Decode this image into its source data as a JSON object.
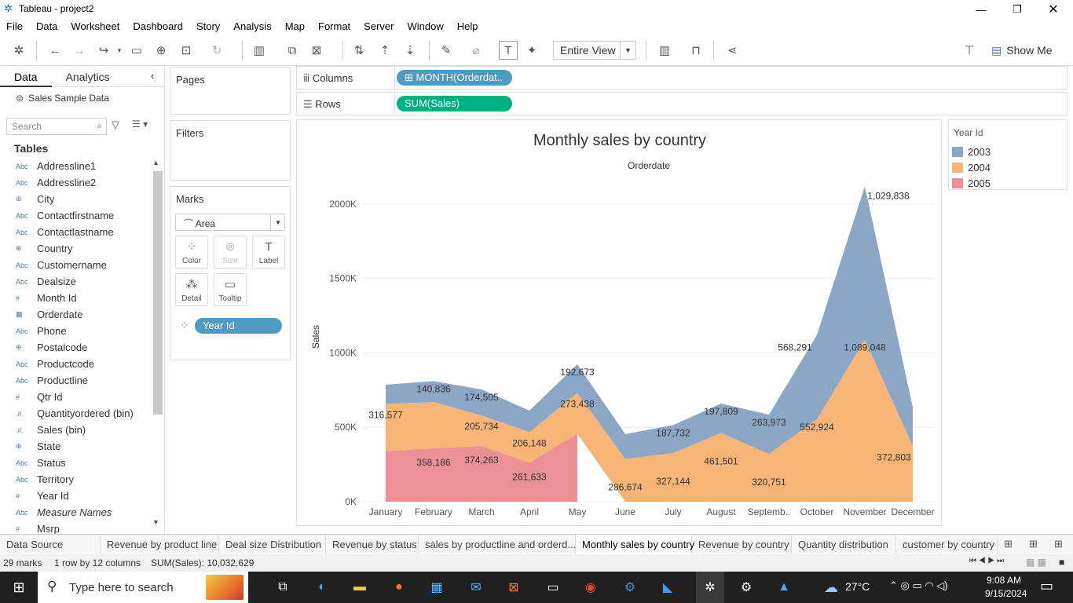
{
  "window": {
    "title": "Tableau - project2"
  },
  "menu": [
    "File",
    "Data",
    "Worksheet",
    "Dashboard",
    "Story",
    "Analysis",
    "Map",
    "Format",
    "Server",
    "Window",
    "Help"
  ],
  "toolbar": {
    "fit": "Entire View",
    "show_me": "Show Me"
  },
  "left_pane": {
    "tabs": [
      "Data",
      "Analytics"
    ],
    "datasource": "Sales Sample Data",
    "search_placeholder": "Search",
    "tables_heading": "Tables",
    "fields": [
      {
        "type": "Abc",
        "name": "Addressline1",
        "icon": "abc-icon"
      },
      {
        "type": "Abc",
        "name": "Addressline2",
        "icon": "abc-icon"
      },
      {
        "type": "⊕",
        "name": "City",
        "icon": "globe-icon"
      },
      {
        "type": "Abc",
        "name": "Contactfirstname",
        "icon": "abc-icon"
      },
      {
        "type": "Abc",
        "name": "Contactlastname",
        "icon": "abc-icon"
      },
      {
        "type": "⊕",
        "name": "Country",
        "icon": "globe-icon"
      },
      {
        "type": "Abc",
        "name": "Customername",
        "icon": "abc-icon"
      },
      {
        "type": "Abc",
        "name": "Dealsize",
        "icon": "abc-icon"
      },
      {
        "type": "#",
        "name": "Month Id",
        "icon": "number-icon"
      },
      {
        "type": "▦",
        "name": "Orderdate",
        "icon": "calendar-icon"
      },
      {
        "type": "Abc",
        "name": "Phone",
        "icon": "abc-icon"
      },
      {
        "type": "⊕",
        "name": "Postalcode",
        "icon": "globe-icon"
      },
      {
        "type": "Abc",
        "name": "Productcode",
        "icon": "abc-icon"
      },
      {
        "type": "Abc",
        "name": "Productline",
        "icon": "abc-icon"
      },
      {
        "type": "#",
        "name": "Qtr Id",
        "icon": "number-icon"
      },
      {
        "type": ".ıl.",
        "name": "Quantityordered (bin)",
        "icon": "bin-icon"
      },
      {
        "type": ".ıl.",
        "name": "Sales (bin)",
        "icon": "bin-icon"
      },
      {
        "type": "⊕",
        "name": "State",
        "icon": "globe-icon"
      },
      {
        "type": "Abc",
        "name": "Status",
        "icon": "abc-icon"
      },
      {
        "type": "Abc",
        "name": "Territory",
        "icon": "abc-icon"
      },
      {
        "type": "#",
        "name": "Year Id",
        "icon": "number-icon"
      },
      {
        "type": "Abc",
        "name": "Measure Names",
        "icon": "abc-icon"
      },
      {
        "type": "#",
        "name": "Msrp",
        "icon": "number-icon"
      }
    ]
  },
  "cards": {
    "pages": "Pages",
    "filters": "Filters",
    "marks": "Marks",
    "mark_type": "Area",
    "buttons": [
      "Color",
      "Size",
      "Label",
      "Detail",
      "Tooltip"
    ],
    "color_pill": "Year Id"
  },
  "shelves": {
    "columns_label": "Columns",
    "columns_pill": "⊞ MONTH(Orderdat..",
    "rows_label": "Rows",
    "rows_pill": "SUM(Sales)"
  },
  "colors": {
    "2003": "#8ca6c6",
    "2004": "#f6b477",
    "2005": "#ea9195",
    "pill_blue": "#4e9ac0",
    "pill_green": "#00b180"
  },
  "chart_data": {
    "type": "area",
    "title": "Monthly sales by country",
    "xlabel": "Orderdate",
    "ylabel": "Sales",
    "ylim": [
      0,
      2100000
    ],
    "yticks": [
      "0K",
      "500K",
      "1000K",
      "1500K",
      "2000K"
    ],
    "categories": [
      "January",
      "February",
      "March",
      "April",
      "May",
      "June",
      "July",
      "August",
      "Septemb..",
      "October",
      "November",
      "December"
    ],
    "stacked": true,
    "series": [
      {
        "name": "2005",
        "values": [
          339543,
          358186,
          374263,
          261633,
          457000,
          null,
          null,
          null,
          null,
          null,
          null,
          null
        ],
        "labels": [
          "",
          "358,186",
          "374,263",
          "261,633",
          "",
          "",
          "",
          "",
          "",
          "",
          "",
          ""
        ]
      },
      {
        "name": "2004",
        "values": [
          316577,
          311419,
          205734,
          206148,
          273438,
          286674,
          327144,
          461501,
          320751,
          552924,
          1089048,
          372803
        ],
        "labels": [
          "316,577",
          "",
          "205,734",
          "206,148",
          "273,438",
          "286,674",
          "327,144",
          "461,501",
          "320,751",
          "552,924",
          "1,089,048",
          "372,803"
        ]
      },
      {
        "name": "2003",
        "values": [
          129754,
          140836,
          174505,
          144384,
          192673,
          168082,
          187732,
          197809,
          263973,
          568291,
          1029838,
          261879
        ],
        "labels": [
          "",
          "140,836",
          "174,505",
          "",
          "192,673",
          "",
          "187,732",
          "197,809",
          "263,973",
          "568,291",
          "1,029,838",
          ""
        ]
      }
    ],
    "legend": {
      "title": "Year Id",
      "entries": [
        "2003",
        "2004",
        "2005"
      ],
      "position": "right"
    }
  },
  "sheet_tabs": [
    "Data Source",
    "Revenue by product line",
    "Deal size Distribution",
    "Revenue by status",
    "sales by productline and orderd...",
    "Monthly sales by country",
    "Revenue by country",
    "Quantity distribution",
    "customer by country"
  ],
  "status": {
    "marks": "29 marks",
    "dims": "1 row by 12 columns",
    "sum": "SUM(Sales): 10,032,629"
  },
  "taskbar": {
    "search_placeholder": "Type here to search",
    "weather": "27°C",
    "time": "9:08 AM",
    "date": "9/15/2024"
  }
}
